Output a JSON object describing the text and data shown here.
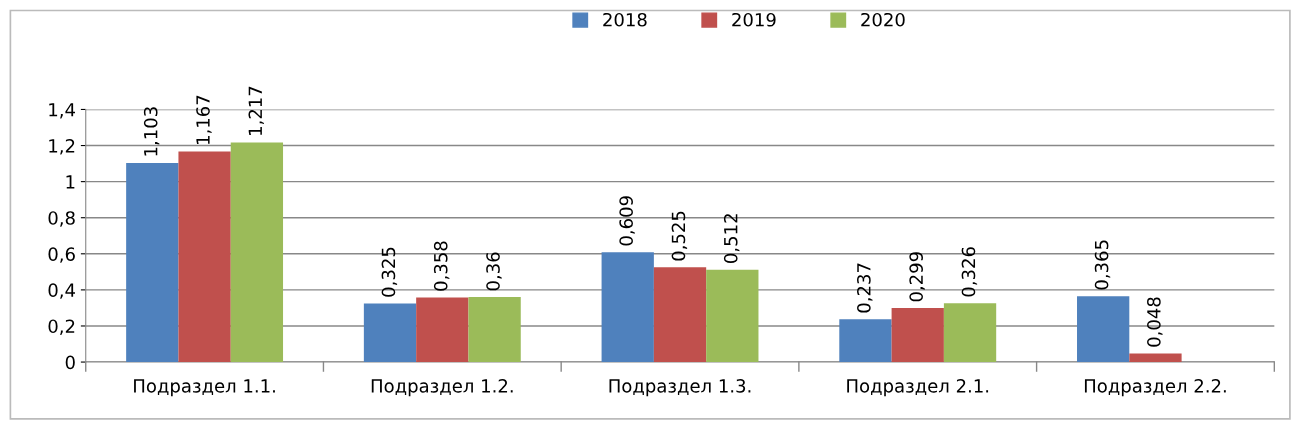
{
  "chart_data": {
    "type": "bar",
    "categories": [
      "Подраздел 1.1.",
      "Подраздел 1.2.",
      "Подраздел 1.3.",
      "Подраздел 2.1.",
      "Подраздел 2.2."
    ],
    "series": [
      {
        "name": "2018",
        "color": "#4f81bd",
        "values": [
          1.103,
          0.325,
          0.609,
          0.237,
          0.365
        ],
        "value_labels": [
          "1,103",
          "0,325",
          "0,609",
          "0,237",
          "0,365"
        ]
      },
      {
        "name": "2019",
        "color": "#c0504d",
        "values": [
          1.167,
          0.358,
          0.525,
          0.299,
          0.048
        ],
        "value_labels": [
          "1,167",
          "0,358",
          "0,525",
          "0,299",
          "0,048"
        ]
      },
      {
        "name": "2020",
        "color": "#9bbb59",
        "values": [
          1.217,
          0.36,
          0.512,
          0.326,
          null
        ],
        "value_labels": [
          "1,217",
          "0,36",
          "0,512",
          "0,326",
          null
        ]
      }
    ],
    "ylim": [
      0,
      1.4
    ],
    "yticks": [
      0,
      {
        "value": 0.2,
        "label": "0,2"
      },
      {
        "value": 0.4,
        "label": "0,4"
      },
      {
        "value": 0.6,
        "label": "0,6"
      },
      {
        "value": 0.8,
        "label": "0,8"
      },
      1,
      {
        "value": 1.2,
        "label": "1,2"
      },
      {
        "value": 1.4,
        "label": "1,4"
      }
    ],
    "grid": "y",
    "legend": "top"
  }
}
